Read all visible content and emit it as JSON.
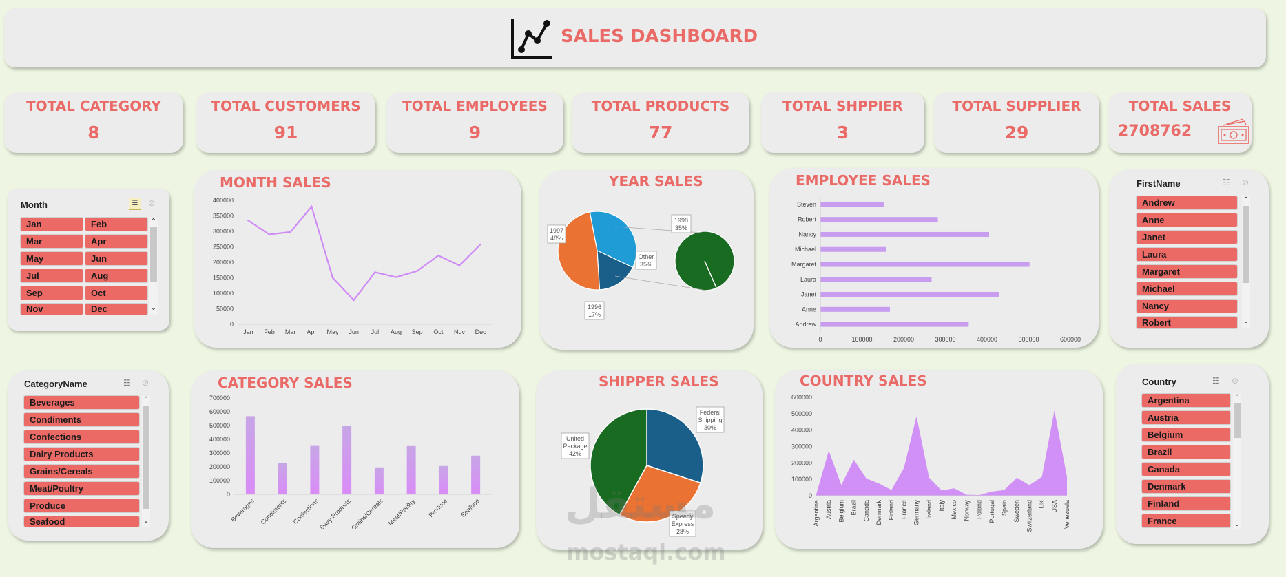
{
  "header": {
    "title": "SALES DASHBOARD",
    "icon": "line-chart-icon"
  },
  "kpis": [
    {
      "title": "TOTAL CATEGORY",
      "value": "8"
    },
    {
      "title": "TOTAL CUSTOMERS",
      "value": "91"
    },
    {
      "title": "TOTAL EMPLOYEES",
      "value": "9"
    },
    {
      "title": "TOTAL PRODUCTS",
      "value": "77"
    },
    {
      "title": "TOTAL SHPPIER",
      "value": "3"
    },
    {
      "title": "TOTAL SUPPLIER",
      "value": "29"
    },
    {
      "title": "TOTAL SALES",
      "value": "2708762",
      "icon": "money-icon"
    }
  ],
  "slicers": {
    "month": {
      "title": "Month",
      "items": [
        "Jan",
        "Feb",
        "Mar",
        "Apr",
        "May",
        "Jun",
        "Jul",
        "Aug",
        "Sep",
        "Oct",
        "Nov",
        "Dec"
      ]
    },
    "firstname": {
      "title": "FirstName",
      "items": [
        "Andrew",
        "Anne",
        "Janet",
        "Laura",
        "Margaret",
        "Michael",
        "Nancy",
        "Robert"
      ]
    },
    "category": {
      "title": "CategoryName",
      "items": [
        "Beverages",
        "Condiments",
        "Confections",
        "Dairy Products",
        "Grains/Cereals",
        "Meat/Poultry",
        "Produce",
        "Seafood"
      ]
    },
    "country": {
      "title": "Country",
      "items": [
        "Argentina",
        "Austria",
        "Belgium",
        "Brazil",
        "Canada",
        "Denmark",
        "Finland",
        "France"
      ]
    }
  },
  "panels": {
    "month_sales": "MONTH SALES",
    "year_sales": "YEAR SALES",
    "employee_sales": "EMPLOYEE SALES",
    "category_sales": "CATEGORY SALES",
    "shipper_sales": "SHIPPER SALES",
    "country_sales": "COUNTRY SALES"
  },
  "colors": {
    "accent": "#e96a66",
    "purple": "#cf8bf5",
    "bar": "#c89df0",
    "orange": "#ea7232",
    "blue": "#1f9bd6",
    "navy": "#1a5f8a",
    "green": "#1a6b22"
  },
  "watermark": {
    "arabic": "مستقل",
    "latin": "mostaql.com"
  },
  "chart_data": [
    {
      "id": "month_sales",
      "type": "line",
      "categories": [
        "Jan",
        "Feb",
        "Mar",
        "Apr",
        "May",
        "Jun",
        "Jul",
        "Aug",
        "Sep",
        "Oct",
        "Nov",
        "Dec"
      ],
      "values": [
        335000,
        290000,
        298000,
        380000,
        150000,
        78000,
        168000,
        152000,
        172000,
        222000,
        190000,
        258000
      ],
      "ylim": [
        0,
        400000
      ],
      "yticks": [
        "0",
        "50000",
        "100000",
        "150000",
        "200000",
        "250000",
        "300000",
        "350000",
        "400000"
      ]
    },
    {
      "id": "year_sales",
      "type": "pie",
      "slices": [
        {
          "label": "1997",
          "pct": "48%",
          "value": 48
        },
        {
          "label": "Other",
          "pct": "35%",
          "value": 35
        },
        {
          "label": "1996",
          "pct": "17%",
          "value": 17
        }
      ],
      "secondary": {
        "label": "1998",
        "pct": "35%",
        "value": 35
      }
    },
    {
      "id": "employee_sales",
      "type": "bar",
      "orientation": "horizontal",
      "categories": [
        "Steven",
        "Robert",
        "Nancy",
        "Michael",
        "Margaret",
        "Laura",
        "Janet",
        "Anne",
        "Andrew"
      ],
      "values": [
        152000,
        282000,
        405000,
        157000,
        502000,
        267000,
        428000,
        167000,
        356000
      ],
      "xlim": [
        0,
        600000
      ],
      "xticks": [
        "0",
        "100000",
        "200000",
        "300000",
        "400000",
        "500000",
        "600000"
      ]
    },
    {
      "id": "category_sales",
      "type": "bar",
      "categories": [
        "Beverages",
        "Condiments",
        "Confections",
        "Dairy Products",
        "Grains/Cereals",
        "Meat/Poultry",
        "Produce",
        "Seafood"
      ],
      "values": [
        568000,
        226000,
        352000,
        500000,
        196000,
        351000,
        206000,
        281000
      ],
      "ylim": [
        0,
        700000
      ],
      "yticks": [
        "0",
        "100000",
        "200000",
        "300000",
        "400000",
        "500000",
        "600000",
        "700000"
      ]
    },
    {
      "id": "shipper_sales",
      "type": "pie",
      "slices": [
        {
          "label": "Federal Shipping",
          "pct": "30%",
          "value": 30
        },
        {
          "label": "Speedy Express",
          "pct": "28%",
          "value": 28
        },
        {
          "label": "United Package",
          "pct": "42%",
          "value": 42
        }
      ]
    },
    {
      "id": "country_sales",
      "type": "area",
      "categories": [
        "Argentina",
        "Austria",
        "Belgium",
        "Brazil",
        "Canada",
        "Denmark",
        "Finland",
        "France",
        "Germany",
        "Ireland",
        "Italy",
        "Mexico",
        "Norway",
        "Poland",
        "Portugal",
        "Spain",
        "Sweden",
        "Switzerland",
        "UK",
        "USA",
        "Venezuela"
      ],
      "values": [
        8000,
        275000,
        65000,
        220000,
        105000,
        75000,
        35000,
        170000,
        485000,
        110000,
        32000,
        45000,
        6000,
        4000,
        25000,
        35000,
        110000,
        65000,
        115000,
        520000,
        115000
      ],
      "ylim": [
        0,
        600000
      ],
      "yticks": [
        "0",
        "100000",
        "200000",
        "300000",
        "400000",
        "500000",
        "600000"
      ]
    }
  ]
}
